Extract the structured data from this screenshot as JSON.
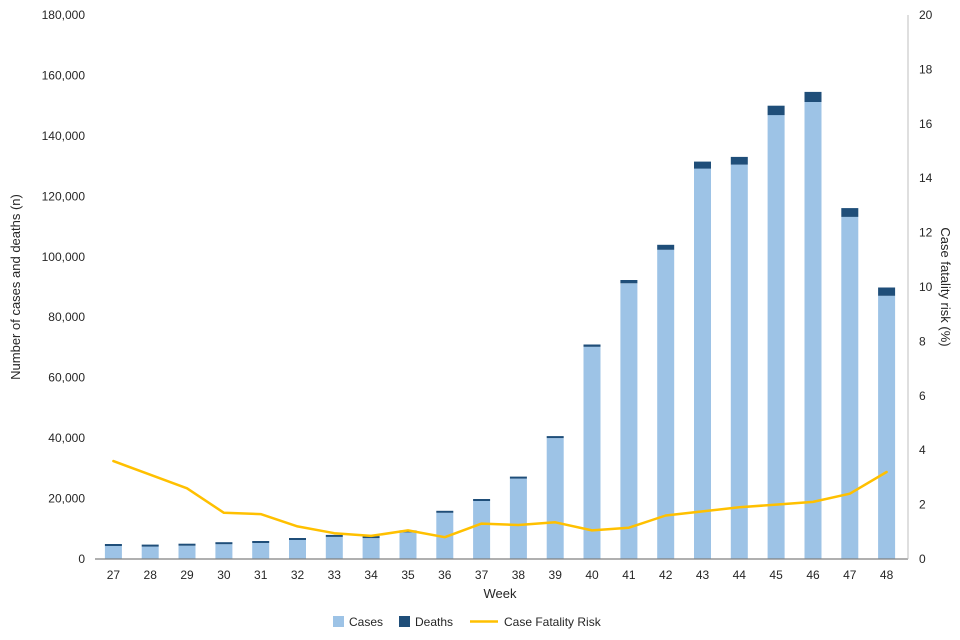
{
  "chart_data": {
    "type": "bar",
    "subtype": "stacked-bars-with-secondary-axis-line",
    "title": "",
    "xlabel": "Week",
    "ylabel_left": "Number of cases and deaths (n)",
    "ylabel_right": "Case fatality risk (%)",
    "ylim_left": [
      0,
      180000
    ],
    "ytick_step_left": 20000,
    "ylim_right": [
      0,
      20
    ],
    "ytick_step_right": 2,
    "grid": false,
    "legend_position": "bottom",
    "categories": [
      "27",
      "28",
      "29",
      "30",
      "31",
      "32",
      "33",
      "34",
      "35",
      "36",
      "37",
      "38",
      "39",
      "40",
      "41",
      "42",
      "43",
      "44",
      "45",
      "46",
      "47",
      "48"
    ],
    "series": [
      {
        "name": "Cases",
        "type": "bar",
        "axis": "left",
        "color": "#9DC3E6",
        "values": [
          4300,
          4100,
          4400,
          4900,
          5300,
          6300,
          7300,
          6900,
          8800,
          15300,
          19200,
          26600,
          40000,
          70200,
          91200,
          102300,
          129200,
          130500,
          146900,
          151200,
          113200,
          87100
        ]
      },
      {
        "name": "Deaths",
        "type": "bar",
        "axis": "left",
        "color": "#1F4E79",
        "values": [
          150,
          130,
          110,
          90,
          90,
          80,
          70,
          60,
          90,
          120,
          250,
          340,
          550,
          760,
          1100,
          1650,
          2300,
          2550,
          3100,
          3350,
          2900,
          2750
        ]
      },
      {
        "name": "Case Fatality Risk",
        "type": "line",
        "axis": "right",
        "color": "#FFC000",
        "values": [
          3.6,
          3.1,
          2.6,
          1.7,
          1.65,
          1.2,
          0.95,
          0.85,
          1.05,
          0.8,
          1.3,
          1.25,
          1.35,
          1.05,
          1.15,
          1.6,
          1.75,
          1.9,
          2.0,
          2.1,
          2.4,
          3.2
        ]
      }
    ],
    "colors": {
      "cases_bar": "#9DC3E6",
      "deaths_bar": "#1F4E79",
      "cfr_line": "#FFC000",
      "axis_line": "#808080",
      "text": "#262626"
    }
  }
}
